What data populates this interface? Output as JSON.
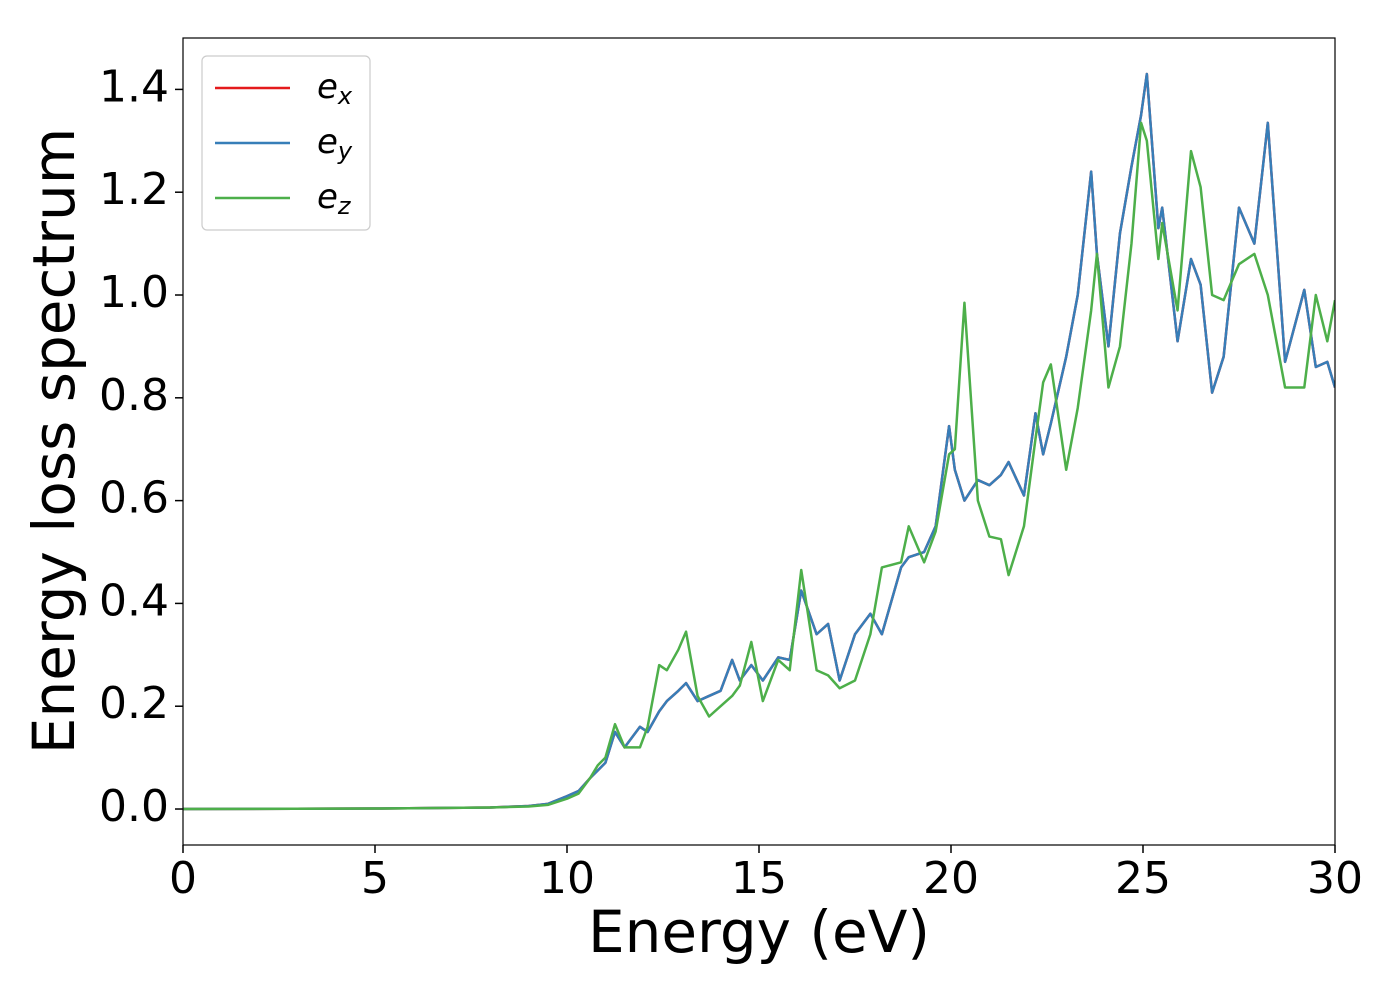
{
  "chart_data": {
    "type": "line",
    "xlabel": "Energy (eV)",
    "ylabel": "Energy loss spectrum",
    "x": [
      0,
      5,
      8,
      9,
      9.5,
      10,
      10.3,
      10.6,
      10.8,
      11,
      11.25,
      11.5,
      11.9,
      12.1,
      12.4,
      12.6,
      12.9,
      13.1,
      13.4,
      13.7,
      14,
      14.3,
      14.5,
      14.8,
      15.1,
      15.5,
      15.8,
      16.1,
      16.5,
      16.8,
      17.1,
      17.5,
      17.9,
      18.2,
      18.7,
      18.9,
      19.3,
      19.6,
      19.95,
      20.1,
      20.35,
      20.7,
      21,
      21.3,
      21.5,
      21.9,
      22.2,
      22.4,
      22.6,
      23,
      23.3,
      23.65,
      23.8,
      24.1,
      24.4,
      24.7,
      24.95,
      25.1,
      25.4,
      25.5,
      25.9,
      26.25,
      26.5,
      26.8,
      27.1,
      27.5,
      27.9,
      28.25,
      28.7,
      29.2,
      29.5,
      29.8,
      30
    ],
    "series": [
      {
        "name": "ex",
        "color": "#e41a1c",
        "values": [
          0,
          0.001,
          0.003,
          0.006,
          0.01,
          0.025,
          0.035,
          0.06,
          0.075,
          0.09,
          0.15,
          0.12,
          0.16,
          0.15,
          0.19,
          0.21,
          0.23,
          0.245,
          0.21,
          0.22,
          0.23,
          0.29,
          0.25,
          0.28,
          0.25,
          0.295,
          0.29,
          0.425,
          0.34,
          0.36,
          0.25,
          0.34,
          0.38,
          0.34,
          0.47,
          0.49,
          0.5,
          0.55,
          0.745,
          0.66,
          0.6,
          0.64,
          0.63,
          0.65,
          0.675,
          0.61,
          0.77,
          0.69,
          0.75,
          0.88,
          1.0,
          1.24,
          1.08,
          0.9,
          1.12,
          1.25,
          1.35,
          1.43,
          1.13,
          1.17,
          0.91,
          1.07,
          1.02,
          0.81,
          0.88,
          1.17,
          1.1,
          1.335,
          0.87,
          1.01,
          0.86,
          0.87,
          0.82
        ]
      },
      {
        "name": "ey",
        "color": "#377eb8",
        "values": [
          0,
          0.001,
          0.003,
          0.006,
          0.01,
          0.025,
          0.035,
          0.06,
          0.075,
          0.09,
          0.15,
          0.12,
          0.16,
          0.15,
          0.19,
          0.21,
          0.23,
          0.245,
          0.21,
          0.22,
          0.23,
          0.29,
          0.25,
          0.28,
          0.25,
          0.295,
          0.29,
          0.425,
          0.34,
          0.36,
          0.25,
          0.34,
          0.38,
          0.34,
          0.47,
          0.49,
          0.5,
          0.55,
          0.745,
          0.66,
          0.6,
          0.64,
          0.63,
          0.65,
          0.675,
          0.61,
          0.77,
          0.69,
          0.75,
          0.88,
          1.0,
          1.24,
          1.08,
          0.9,
          1.12,
          1.25,
          1.35,
          1.43,
          1.13,
          1.17,
          0.91,
          1.07,
          1.02,
          0.81,
          0.88,
          1.17,
          1.1,
          1.335,
          0.87,
          1.01,
          0.86,
          0.87,
          0.82
        ]
      },
      {
        "name": "ez",
        "color": "#4daf4a",
        "values": [
          0,
          0.001,
          0.003,
          0.005,
          0.008,
          0.02,
          0.03,
          0.06,
          0.085,
          0.1,
          0.165,
          0.12,
          0.12,
          0.16,
          0.28,
          0.27,
          0.31,
          0.345,
          0.22,
          0.18,
          0.2,
          0.22,
          0.24,
          0.325,
          0.21,
          0.29,
          0.27,
          0.465,
          0.27,
          0.26,
          0.235,
          0.25,
          0.34,
          0.47,
          0.48,
          0.55,
          0.48,
          0.54,
          0.69,
          0.7,
          0.985,
          0.6,
          0.53,
          0.525,
          0.455,
          0.55,
          0.72,
          0.83,
          0.865,
          0.66,
          0.78,
          0.97,
          1.08,
          0.82,
          0.9,
          1.1,
          1.335,
          1.3,
          1.07,
          1.14,
          0.97,
          1.28,
          1.21,
          1.0,
          0.99,
          1.06,
          1.08,
          1.0,
          0.82,
          0.82,
          1.0,
          0.91,
          0.99
        ]
      }
    ],
    "xlim": [
      0,
      30
    ],
    "xticks": [
      0,
      5,
      10,
      15,
      20,
      25,
      30
    ],
    "ylim": [
      -0.07,
      1.5
    ],
    "yticks": [
      {
        "value": 0,
        "label": "0.0"
      },
      {
        "value": 0.2,
        "label": "0.2"
      },
      {
        "value": 0.4,
        "label": "0.4"
      },
      {
        "value": 0.6,
        "label": "0.6"
      },
      {
        "value": 0.8,
        "label": "0.8"
      },
      {
        "value": 1.0,
        "label": "1.0"
      },
      {
        "value": 1.2,
        "label": "1.2"
      },
      {
        "value": 1.4,
        "label": "1.4"
      }
    ],
    "legend": "upper left",
    "grid": false
  }
}
